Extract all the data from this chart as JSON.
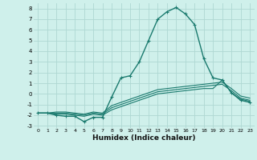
{
  "xlabel": "Humidex (Indice chaleur)",
  "background_color": "#cff0eb",
  "grid_color": "#aed8d3",
  "line_color": "#1a7a6e",
  "xlim": [
    -0.5,
    23.5
  ],
  "ylim": [
    -3.2,
    8.5
  ],
  "yticks": [
    -3,
    -2,
    -1,
    0,
    1,
    2,
    3,
    4,
    5,
    6,
    7,
    8
  ],
  "xticks": [
    0,
    1,
    2,
    3,
    4,
    5,
    6,
    7,
    8,
    9,
    10,
    11,
    12,
    13,
    14,
    15,
    16,
    17,
    18,
    19,
    20,
    21,
    22,
    23
  ],
  "series": [
    {
      "x": [
        0,
        1,
        2,
        3,
        4,
        5,
        6,
        7,
        8,
        9,
        10,
        11,
        12,
        13,
        14,
        15,
        16,
        17,
        18,
        19,
        20,
        21,
        22,
        23
      ],
      "y": [
        -1.8,
        -1.8,
        -2.0,
        -2.1,
        -2.1,
        -2.6,
        -2.2,
        -2.2,
        -0.3,
        1.5,
        1.7,
        3.0,
        5.0,
        7.0,
        7.7,
        8.1,
        7.5,
        6.5,
        3.3,
        1.5,
        1.3,
        0.1,
        -0.6,
        -0.8
      ],
      "marker": true,
      "linewidth": 1.0
    },
    {
      "x": [
        0,
        1,
        2,
        3,
        4,
        5,
        6,
        7,
        8,
        9,
        10,
        11,
        12,
        13,
        14,
        15,
        16,
        17,
        18,
        19,
        20,
        21,
        22,
        23
      ],
      "y": [
        -1.8,
        -1.8,
        -1.9,
        -1.9,
        -2.0,
        -2.1,
        -1.9,
        -2.0,
        -1.5,
        -1.2,
        -0.9,
        -0.6,
        -0.3,
        0.0,
        0.1,
        0.2,
        0.3,
        0.4,
        0.5,
        0.5,
        1.3,
        0.1,
        -0.5,
        -0.7
      ],
      "marker": false,
      "linewidth": 0.8
    },
    {
      "x": [
        0,
        1,
        2,
        3,
        4,
        5,
        6,
        7,
        8,
        9,
        10,
        11,
        12,
        13,
        14,
        15,
        16,
        17,
        18,
        19,
        20,
        21,
        22,
        23
      ],
      "y": [
        -1.8,
        -1.8,
        -1.8,
        -1.8,
        -1.9,
        -2.0,
        -1.8,
        -1.9,
        -1.3,
        -1.0,
        -0.7,
        -0.4,
        -0.1,
        0.2,
        0.3,
        0.4,
        0.5,
        0.6,
        0.7,
        0.8,
        0.9,
        0.3,
        -0.4,
        -0.6
      ],
      "marker": false,
      "linewidth": 0.8
    },
    {
      "x": [
        0,
        1,
        2,
        3,
        4,
        5,
        6,
        7,
        8,
        9,
        10,
        11,
        12,
        13,
        14,
        15,
        16,
        17,
        18,
        19,
        20,
        21,
        22,
        23
      ],
      "y": [
        -1.8,
        -1.8,
        -1.7,
        -1.7,
        -1.8,
        -1.9,
        -1.7,
        -1.8,
        -1.1,
        -0.8,
        -0.5,
        -0.2,
        0.1,
        0.4,
        0.5,
        0.6,
        0.7,
        0.8,
        0.9,
        1.0,
        1.1,
        0.5,
        -0.2,
        -0.4
      ],
      "marker": false,
      "linewidth": 0.8
    }
  ]
}
